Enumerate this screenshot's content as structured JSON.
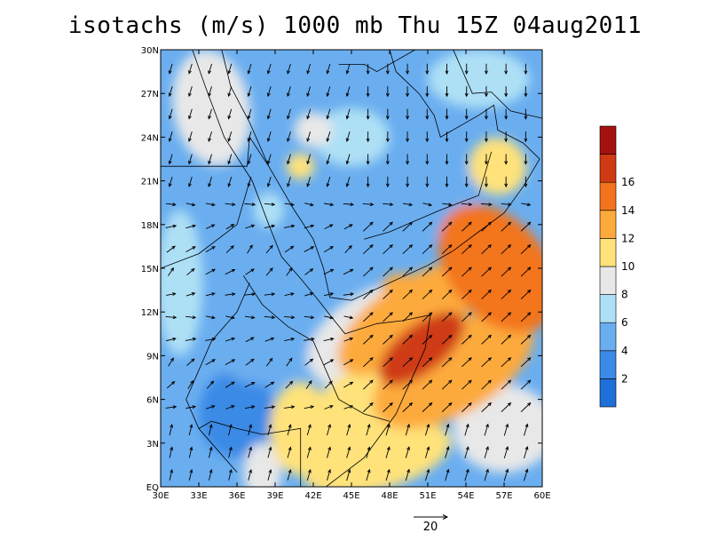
{
  "chart_data": {
    "type": "heatmap",
    "title": "isotachs (m/s) 1000 mb Thu 15Z 04aug2011",
    "x_ticks": [
      "30E",
      "33E",
      "36E",
      "39E",
      "42E",
      "45E",
      "48E",
      "51E",
      "54E",
      "57E",
      "60E"
    ],
    "y_ticks": [
      "EQ",
      "3N",
      "6N",
      "9N",
      "12N",
      "15N",
      "18N",
      "21N",
      "24N",
      "27N",
      "30N"
    ],
    "xlim": [
      30,
      60
    ],
    "ylim": [
      0,
      30
    ],
    "colorbar": {
      "levels": [
        2,
        4,
        6,
        8,
        10,
        12,
        14,
        16
      ],
      "labels": [
        "2",
        "4",
        "6",
        "8",
        "10",
        "12",
        "14",
        "16"
      ],
      "colors": [
        "#1f6fd8",
        "#3b8ae6",
        "#6aaef0",
        "#aee0f5",
        "#e8e8e8",
        "#ffe27a",
        "#fdaa3c",
        "#f3741c",
        "#cf3a12",
        "#a4120f"
      ]
    },
    "reference_vector": {
      "value": 20,
      "label": "20"
    },
    "regions": [
      {
        "x": 50.5,
        "y": 9.5,
        "speed": 17.5,
        "rx": 4.0,
        "ry": 1.6,
        "angle": 38
      },
      {
        "x": 56.5,
        "y": 15,
        "speed": 14,
        "rx": 3.8,
        "ry": 5,
        "angle": 40
      },
      {
        "x": 49.5,
        "y": 11.5,
        "speed": 13,
        "rx": 6.5,
        "ry": 2.5,
        "angle": 35
      },
      {
        "x": 53,
        "y": 8,
        "speed": 13,
        "rx": 7,
        "ry": 3,
        "angle": 30
      },
      {
        "x": 48.5,
        "y": 14,
        "speed": 12,
        "rx": 1.2,
        "ry": 0.6,
        "angle": 20
      },
      {
        "x": 46,
        "y": 5.5,
        "speed": 10.5,
        "rx": 8,
        "ry": 2.6,
        "angle": 35
      },
      {
        "x": 41,
        "y": 4,
        "speed": 10.5,
        "rx": 2.4,
        "ry": 3.2,
        "angle": 0
      },
      {
        "x": 47,
        "y": 2,
        "speed": 10.5,
        "rx": 6,
        "ry": 2.2,
        "angle": 15
      },
      {
        "x": 56.5,
        "y": 22,
        "speed": 10,
        "rx": 2.2,
        "ry": 2.0,
        "angle": 40
      },
      {
        "x": 41,
        "y": 22,
        "speed": 10,
        "rx": 1.1,
        "ry": 0.9,
        "angle": 0
      },
      {
        "x": 47,
        "y": 10.5,
        "speed": 9,
        "rx": 6,
        "ry": 3,
        "angle": 30
      },
      {
        "x": 57,
        "y": 4,
        "speed": 9,
        "rx": 4,
        "ry": 3,
        "angle": 0
      },
      {
        "x": 34,
        "y": 26,
        "speed": 8.5,
        "rx": 3,
        "ry": 4,
        "angle": 10
      },
      {
        "x": 38,
        "y": 1,
        "speed": 8.5,
        "rx": 1.5,
        "ry": 2,
        "angle": 0
      },
      {
        "x": 42,
        "y": 24.5,
        "speed": 8.5,
        "rx": 1.5,
        "ry": 1.2,
        "angle": 0
      },
      {
        "x": 55,
        "y": 28,
        "speed": 7,
        "rx": 4,
        "ry": 2,
        "angle": 0
      },
      {
        "x": 45,
        "y": 24,
        "speed": 7,
        "rx": 3,
        "ry": 2,
        "angle": 0
      },
      {
        "x": 38.5,
        "y": 19,
        "speed": 7,
        "rx": 1.2,
        "ry": 1.2,
        "angle": 0
      },
      {
        "x": 31.5,
        "y": 14,
        "speed": 7,
        "rx": 1.8,
        "ry": 5,
        "angle": 0
      },
      {
        "x": 38,
        "y": 10,
        "speed": 5,
        "rx": 4,
        "ry": 3,
        "angle": 0
      },
      {
        "x": 52,
        "y": 20,
        "speed": 5,
        "rx": 3,
        "ry": 3,
        "angle": 0
      },
      {
        "x": 36,
        "y": 5,
        "speed": 3,
        "rx": 3,
        "ry": 3,
        "angle": 0
      }
    ],
    "background_speed": 4.5
  }
}
